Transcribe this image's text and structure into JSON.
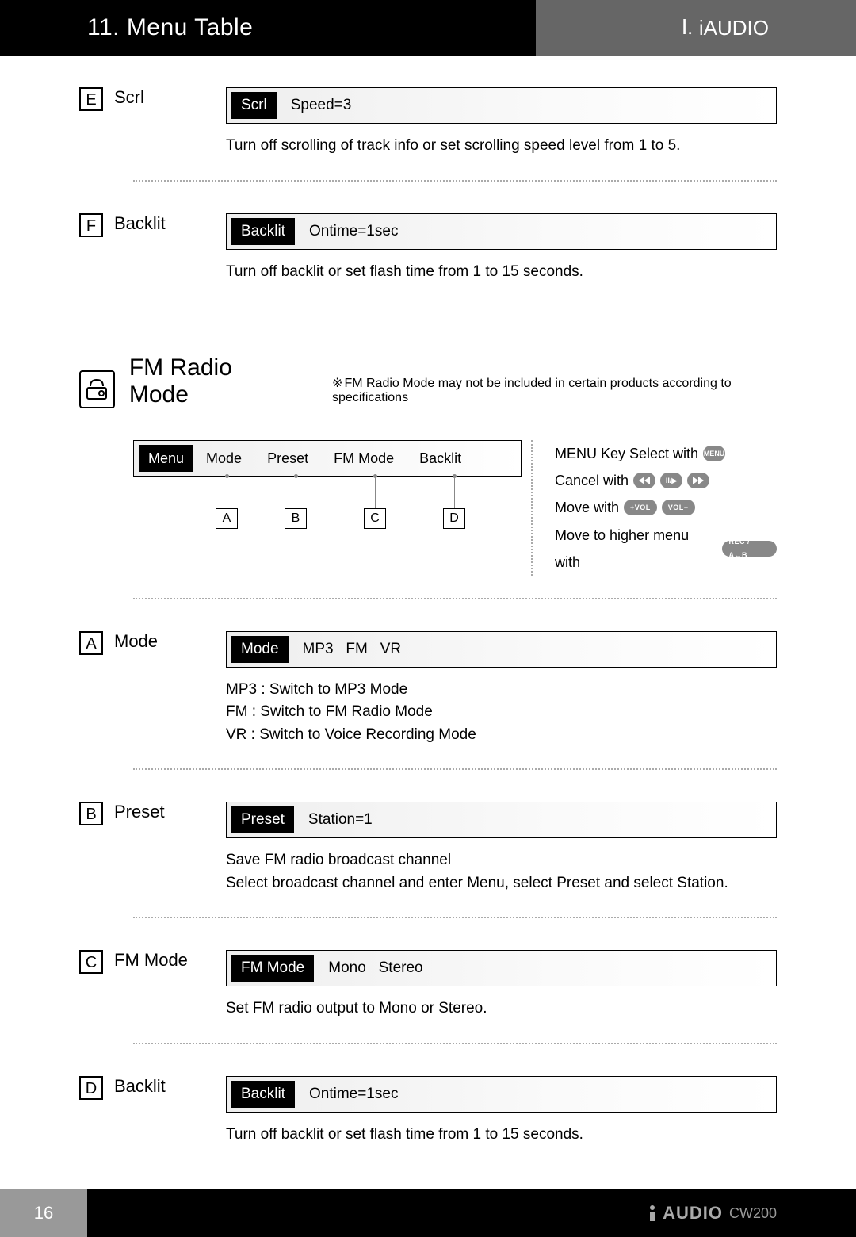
{
  "header": {
    "title": "11. Menu Table",
    "roman": "Ⅰ.",
    "brand": "iAUDIO"
  },
  "topItems": [
    {
      "letter": "E",
      "label": "Scrl",
      "chip": "Scrl",
      "value": "Speed=3",
      "desc": "Turn off scrolling of track info or set scrolling speed level from 1 to 5."
    },
    {
      "letter": "F",
      "label": "Backlit",
      "chip": "Backlit",
      "value": "Ontime=1sec",
      "desc": "Turn off backlit or set flash time from 1 to 15 seconds."
    }
  ],
  "fm": {
    "title": "FM Radio Mode",
    "note": "FM Radio Mode may not be included in certain products according to specifications"
  },
  "menubar": {
    "chip": "Menu",
    "items": [
      "Mode",
      "Preset",
      "FM Mode",
      "Backlit"
    ],
    "letters": [
      "A",
      "B",
      "C",
      "D"
    ]
  },
  "legend": {
    "l1_a": "MENU Key Select with",
    "l1_btn": "MENU",
    "l2_a": "Cancel with",
    "l3_a": "Move with",
    "l3_b1": "+VOL",
    "l3_b2": "VOL−",
    "l4_a": "Move to higher menu with",
    "l4_btn": "REC / A↔B"
  },
  "fmItems": [
    {
      "letter": "A",
      "label": "Mode",
      "chip": "Mode",
      "value": "MP3    FM    VR",
      "desc": "MP3 : Switch to MP3 Mode\nFM : Switch to FM Radio Mode\nVR : Switch to Voice Recording Mode"
    },
    {
      "letter": "B",
      "label": "Preset",
      "chip": "Preset",
      "value": "Station=1",
      "desc": "Save FM radio broadcast channel\nSelect broadcast channel and enter Menu, select Preset and select Station."
    },
    {
      "letter": "C",
      "label": "FM Mode",
      "chip": "FM Mode",
      "value": "Mono  Stereo",
      "desc": "Set FM radio output to Mono or Stereo."
    },
    {
      "letter": "D",
      "label": "Backlit",
      "chip": "Backlit",
      "value": "Ontime=1sec",
      "desc": "Turn off backlit or set flash time from 1 to 15 seconds."
    }
  ],
  "footer": {
    "page": "16",
    "model": "CW200"
  }
}
